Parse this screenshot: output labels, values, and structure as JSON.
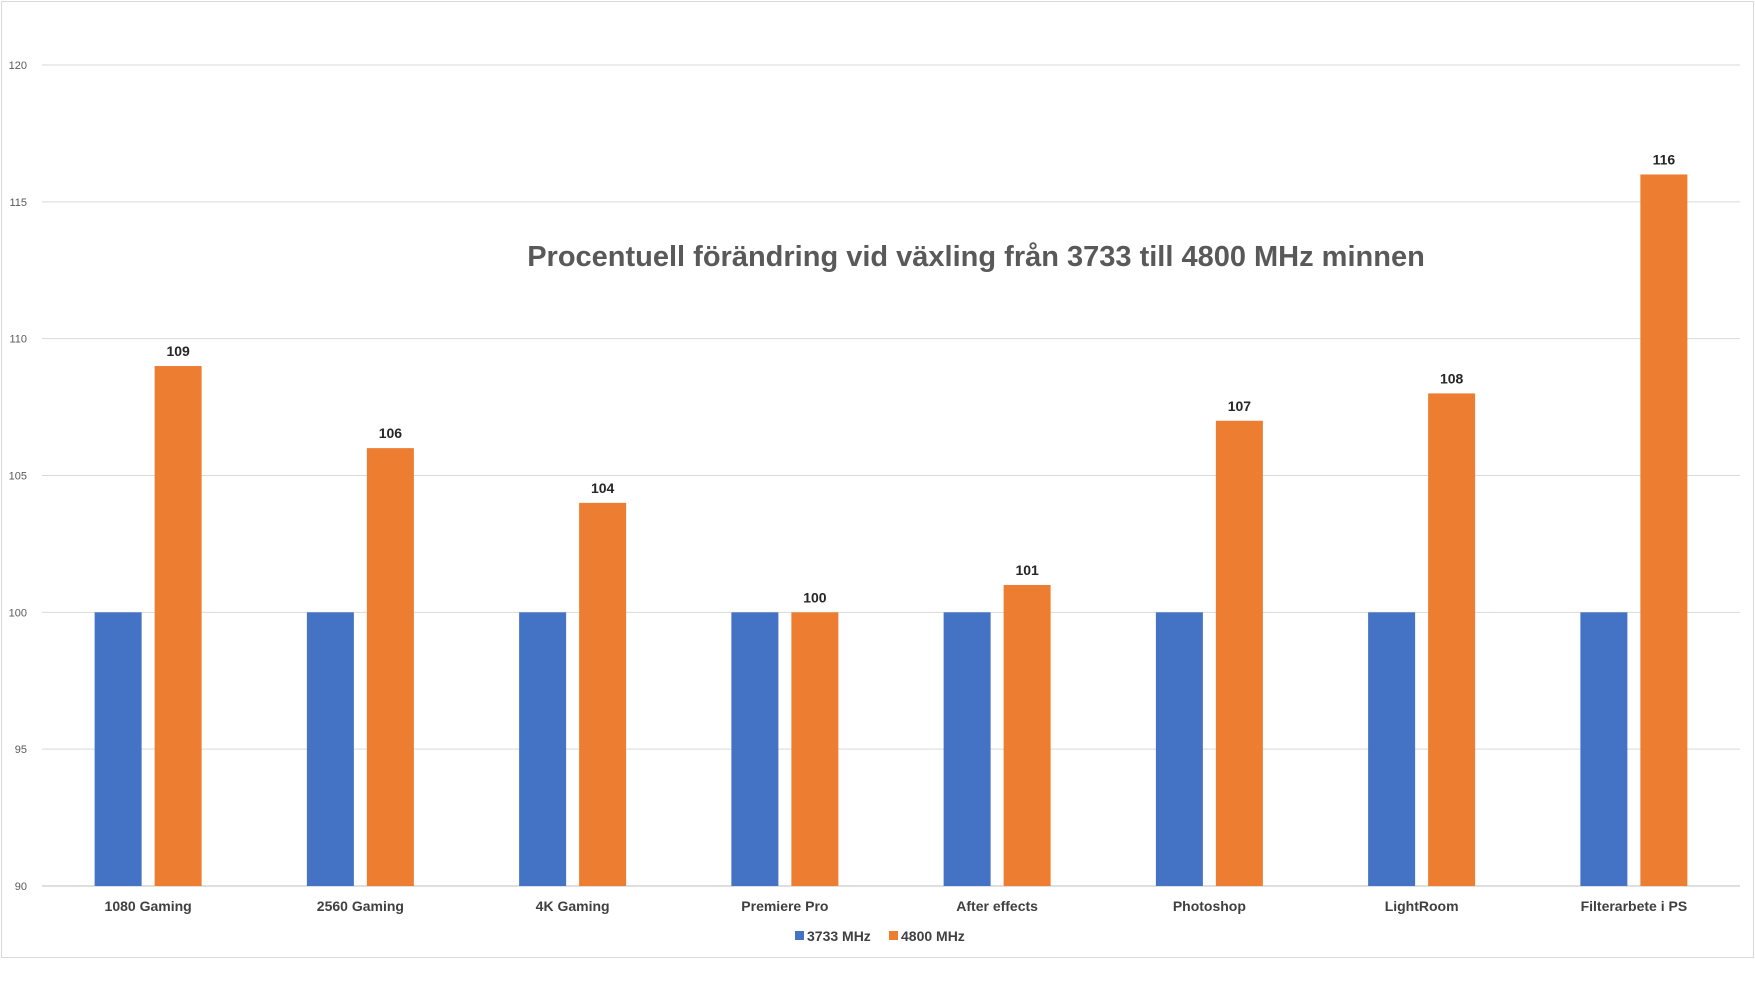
{
  "chart_data": {
    "type": "bar",
    "title": "Procentuell förändring vid växling från 3733 till 4800 MHz minnen",
    "xlabel": "",
    "ylabel": "",
    "ylim": [
      90,
      120
    ],
    "yticks": [
      90,
      95,
      100,
      105,
      110,
      115,
      120
    ],
    "grid": true,
    "legend_position": "bottom",
    "categories": [
      "1080 Gaming",
      "2560 Gaming",
      "4K Gaming",
      "Premiere Pro",
      "After effects",
      "Photoshop",
      "LightRoom",
      "Filterarbete i PS"
    ],
    "series": [
      {
        "name": "3733 MHz",
        "color": "#4472C4",
        "values": [
          100,
          100,
          100,
          100,
          100,
          100,
          100,
          100
        ],
        "show_labels": false
      },
      {
        "name": "4800 MHz",
        "color": "#ED7D31",
        "values": [
          109,
          106,
          104,
          100,
          101,
          107,
          108,
          116
        ],
        "show_labels": true
      }
    ]
  }
}
